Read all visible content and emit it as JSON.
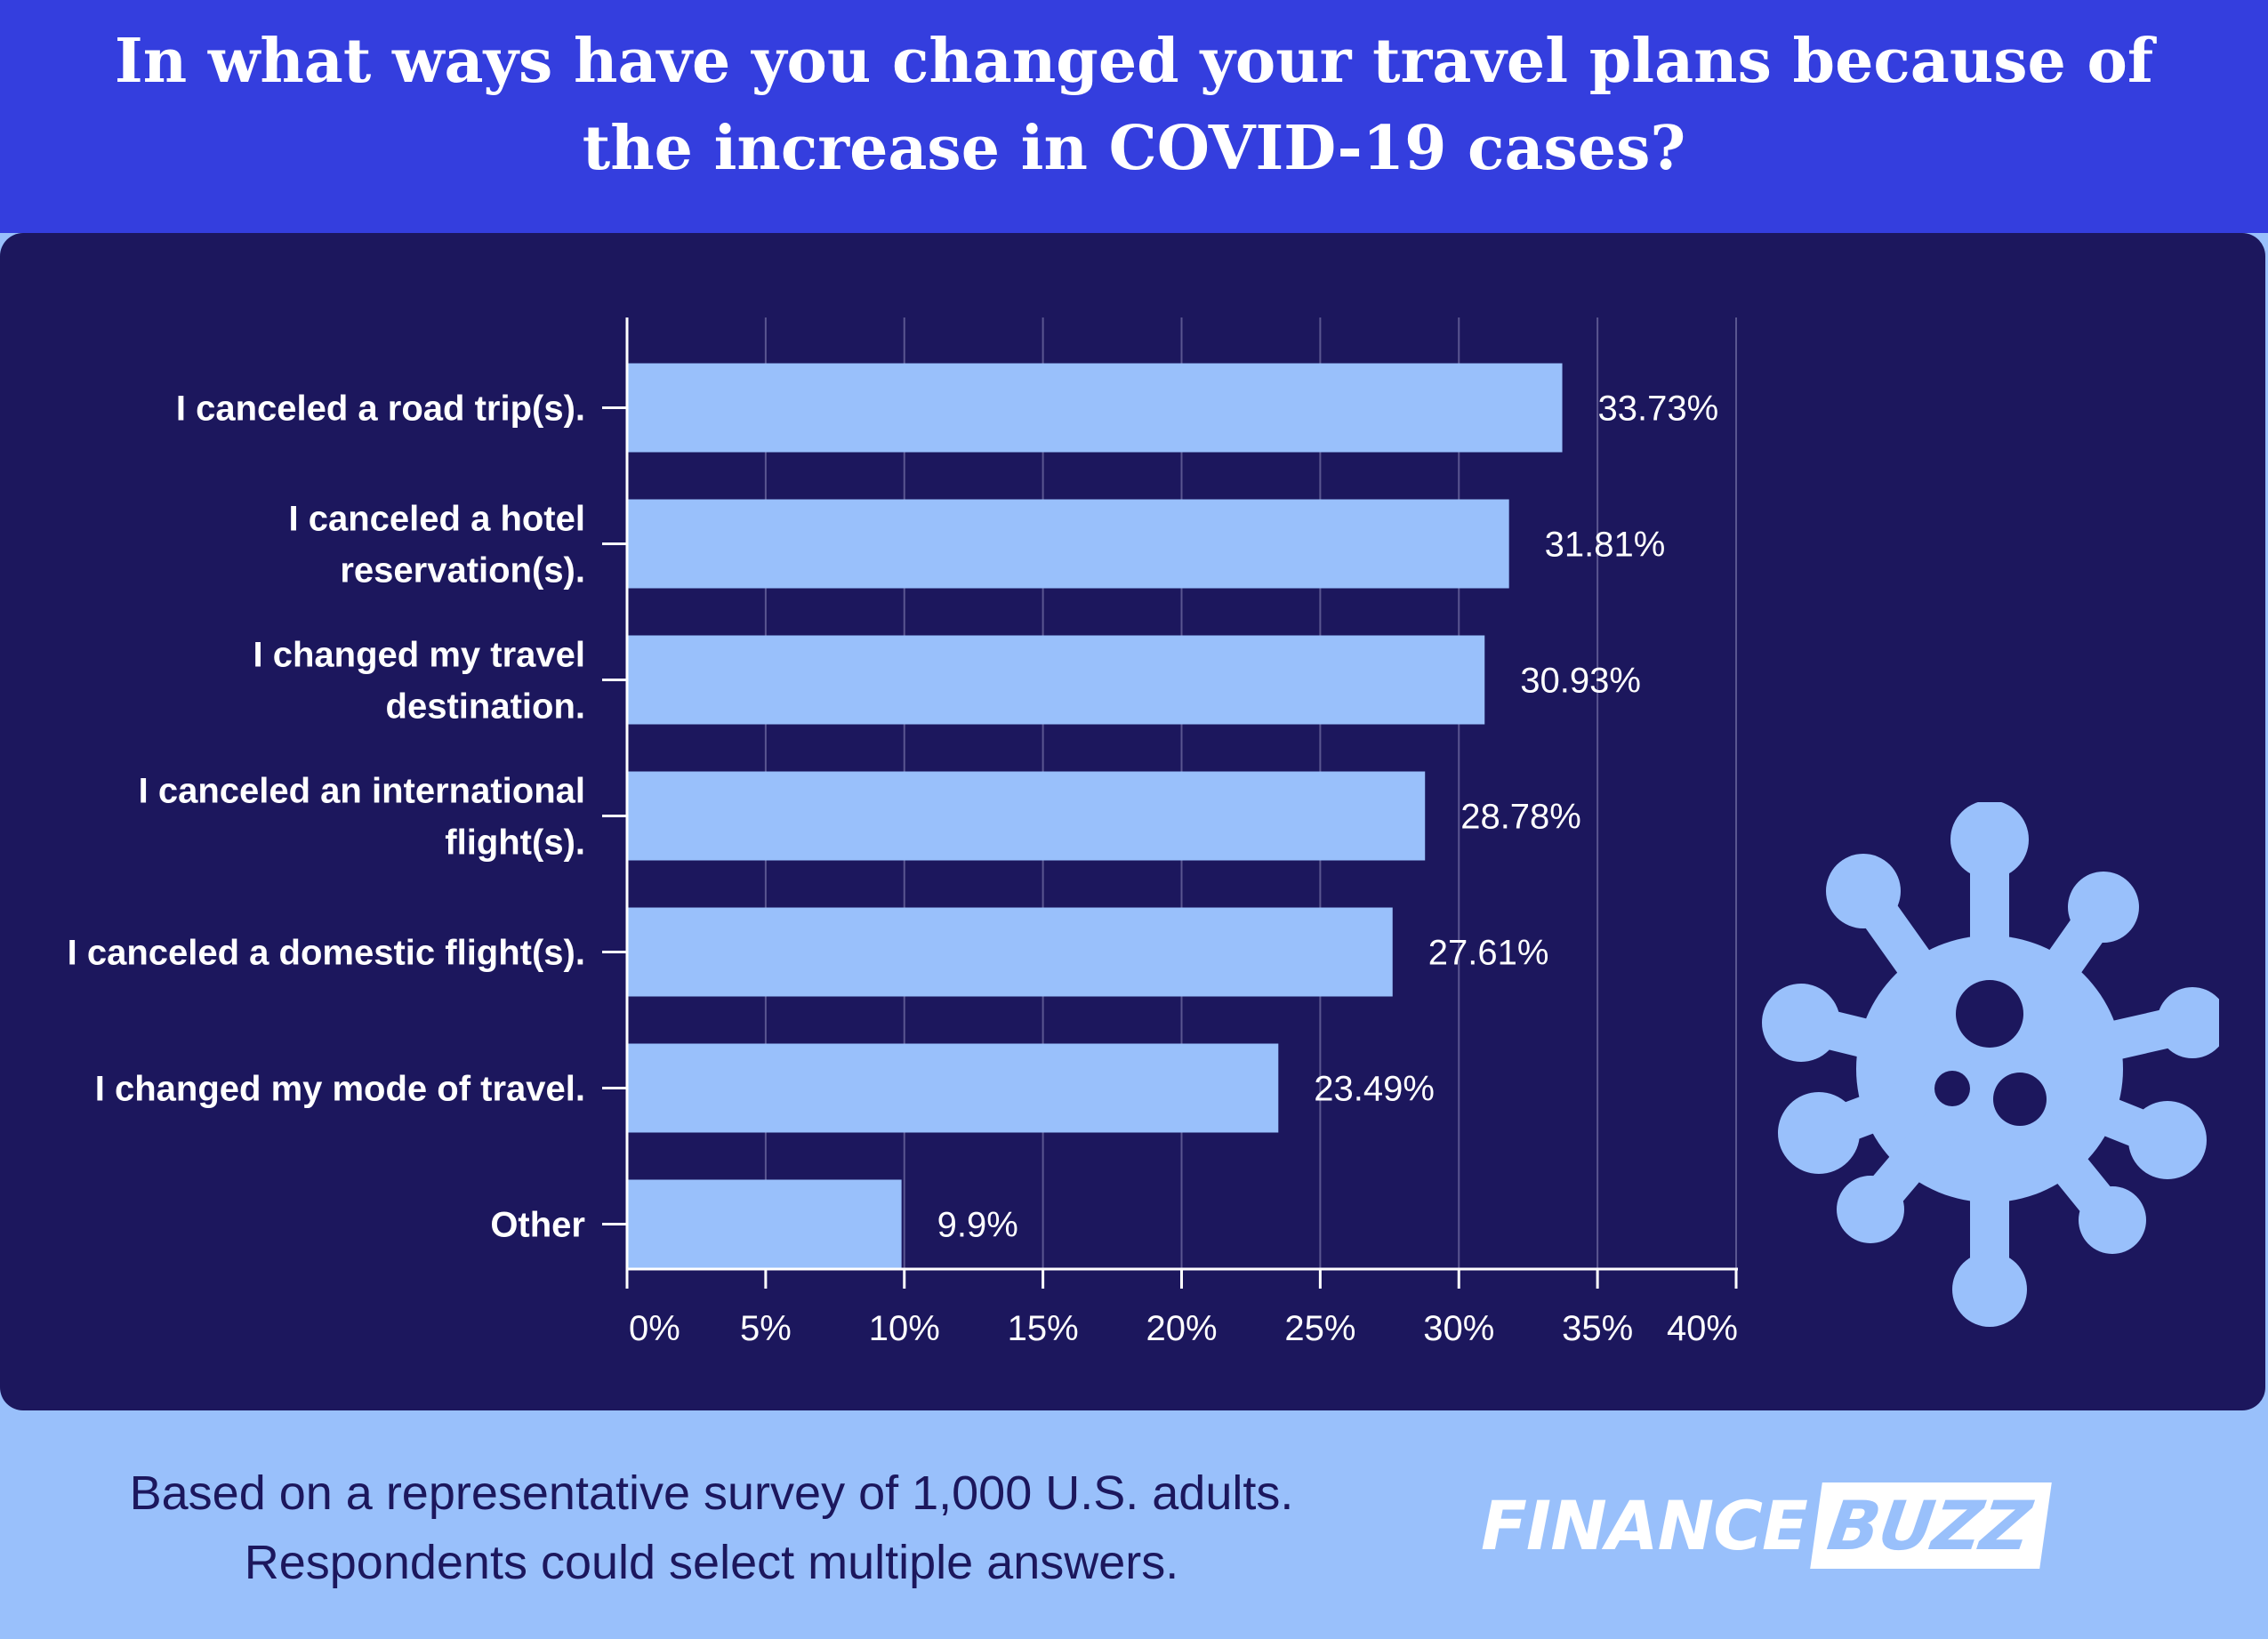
{
  "title": "In what ways have you changed your travel plans because of the increase in COVID-19 cases?",
  "footer": {
    "line1": "Based on a representative survey of 1,000 U.S. adults.",
    "line2": "Respondents could select multiple answers."
  },
  "logo": {
    "part1": "FINANCE",
    "part2": "BUZZ"
  },
  "colors": {
    "header": "#343ede",
    "panel": "#1c175d",
    "bar": "#99c0fb",
    "background": "#99c0fb",
    "text": "#ffffff"
  },
  "icons": {
    "decoration": "virus-icon"
  },
  "chart_data": {
    "type": "bar",
    "orientation": "horizontal",
    "categories": [
      [
        "I canceled a road trip(s)."
      ],
      [
        "I canceled a hotel",
        "reservation(s)."
      ],
      [
        "I changed my travel",
        "destination."
      ],
      [
        "I canceled an international",
        "flight(s)."
      ],
      [
        "I canceled a domestic flight(s)."
      ],
      [
        "I changed my mode of travel."
      ],
      [
        "Other"
      ]
    ],
    "values": [
      33.73,
      31.81,
      30.93,
      28.78,
      27.61,
      23.49,
      9.9
    ],
    "value_labels": [
      "33.73%",
      "31.81%",
      "30.93%",
      "28.78%",
      "27.61%",
      "23.49%",
      "9.9%"
    ],
    "xlim": [
      0,
      40
    ],
    "x_ticks": [
      0,
      5,
      10,
      15,
      20,
      25,
      30,
      35,
      40
    ],
    "x_tick_labels": [
      "0%",
      "5%",
      "10%",
      "15%",
      "20%",
      "25%",
      "30%",
      "35%",
      "40%"
    ],
    "grid": "vertical",
    "legend": "none"
  }
}
